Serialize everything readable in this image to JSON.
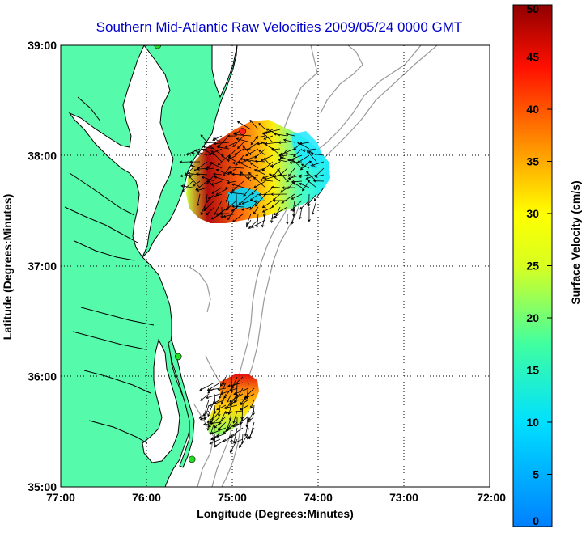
{
  "title": "Southern Mid-Atlantic Raw Velocities 2009/05/24 0000 GMT",
  "x_axis": {
    "label": "Longitude (Degrees:Minutes)",
    "ticks": [
      "77:00",
      "76:00",
      "75:00",
      "74:00",
      "73:00",
      "72:00"
    ],
    "range": [
      -77,
      -72
    ]
  },
  "y_axis": {
    "label": "Latitude (Degrees:Minutes)",
    "ticks": [
      "35:00",
      "36:00",
      "37:00",
      "38:00",
      "39:00"
    ],
    "range": [
      35,
      39
    ]
  },
  "colorbar": {
    "label": "Surface Velocity (cm/s)",
    "ticks": [
      "0",
      "5",
      "10",
      "15",
      "20",
      "25",
      "30",
      "35",
      "40",
      "45",
      "50"
    ],
    "range": [
      0,
      50
    ],
    "colormap": "jet"
  },
  "grid": "dotted",
  "colors": {
    "land": "#55fbaa",
    "coastline": "#000000",
    "bathymetry": "#9a9a9a",
    "title": "#0000cc"
  },
  "stations": [
    {
      "lon": -74.88,
      "lat": 38.22,
      "color": "#ff2020"
    },
    {
      "lon": -75.87,
      "lat": 39.0,
      "color": "#22dd22"
    },
    {
      "lon": -75.63,
      "lat": 36.18,
      "color": "#22dd22"
    },
    {
      "lon": -75.47,
      "lat": 35.25,
      "color": "#22dd22"
    }
  ]
}
